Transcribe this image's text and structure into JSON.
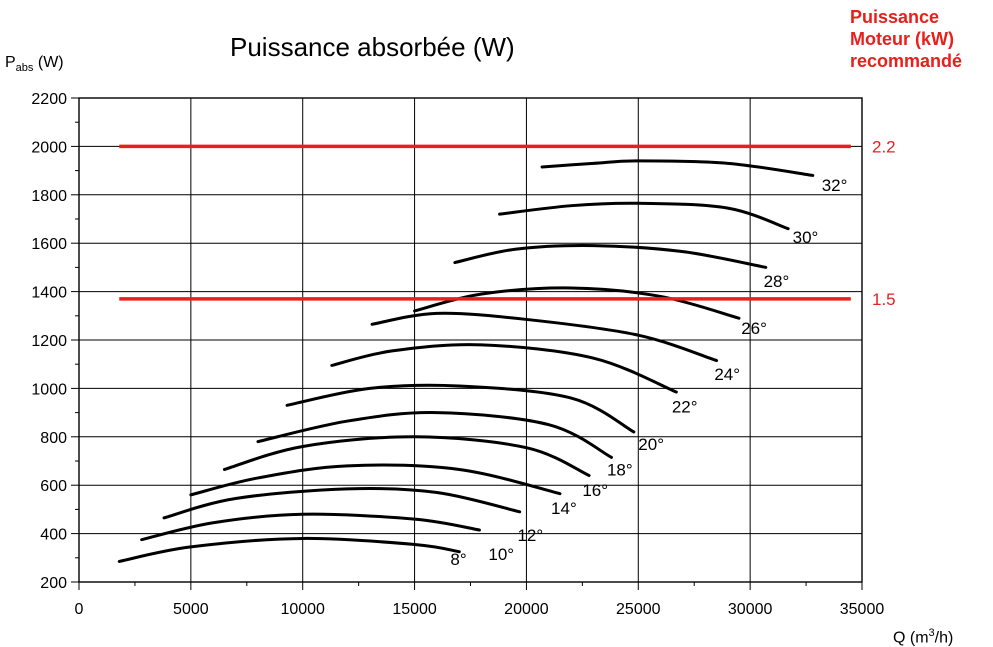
{
  "chart_data": {
    "type": "line",
    "title": "Puissance absorbée (W)",
    "motor_title_lines": [
      "Puissance",
      "Moteur (kW)",
      "recommandé"
    ],
    "ylabel_main": "P",
    "ylabel_sub": "abs",
    "ylabel_unit": " (W)",
    "xlabel_main": "Q (m",
    "xlabel_sup": "3",
    "xlabel_unit": "/h)",
    "xlim": [
      0,
      35000
    ],
    "ylim": [
      200,
      2200
    ],
    "x_ticks": [
      0,
      5000,
      10000,
      15000,
      20000,
      25000,
      30000,
      35000
    ],
    "y_ticks": [
      200,
      400,
      600,
      800,
      1000,
      1200,
      1400,
      1600,
      1800,
      2000,
      2200
    ],
    "grid": true,
    "colors": {
      "curves": "#000000",
      "motor_lines": "#e8201b",
      "grid": "#000000"
    },
    "motor_lines": [
      {
        "label": "2.2",
        "y": 2000,
        "x_start": 1800,
        "x_end": 34500
      },
      {
        "label": "1.5",
        "y": 1370,
        "x_start": 1800,
        "x_end": 34500
      }
    ],
    "series": [
      {
        "name": "8°",
        "x": [
          1800,
          5000,
          10000,
          15000,
          17000
        ],
        "y": [
          285,
          345,
          380,
          355,
          325
        ]
      },
      {
        "name": "10°",
        "x": [
          2800,
          6000,
          10000,
          15000,
          17900
        ],
        "y": [
          375,
          445,
          480,
          460,
          415
        ]
      },
      {
        "name": "12°",
        "x": [
          3800,
          7000,
          12000,
          16000,
          19700
        ],
        "y": [
          465,
          545,
          585,
          570,
          490
        ]
      },
      {
        "name": "14°",
        "x": [
          5000,
          8000,
          12000,
          17000,
          21500
        ],
        "y": [
          560,
          630,
          680,
          665,
          565
        ]
      },
      {
        "name": "16°",
        "x": [
          6500,
          10000,
          15000,
          20000,
          22800
        ],
        "y": [
          665,
          760,
          800,
          755,
          640
        ]
      },
      {
        "name": "18°",
        "x": [
          8000,
          12000,
          16000,
          21000,
          23800
        ],
        "y": [
          780,
          865,
          900,
          850,
          715
        ]
      },
      {
        "name": "20°",
        "x": [
          9300,
          13000,
          17000,
          22000,
          24800
        ],
        "y": [
          930,
          1000,
          1010,
          960,
          820
        ]
      },
      {
        "name": "22°",
        "x": [
          11300,
          14000,
          18000,
          23000,
          26700
        ],
        "y": [
          1095,
          1155,
          1180,
          1125,
          985
        ]
      },
      {
        "name": "24°",
        "x": [
          13100,
          16000,
          20000,
          25000,
          28500
        ],
        "y": [
          1265,
          1310,
          1285,
          1220,
          1115
        ]
      },
      {
        "name": "26°",
        "x": [
          15000,
          18000,
          22000,
          26000,
          29500
        ],
        "y": [
          1320,
          1390,
          1415,
          1380,
          1290
        ]
      },
      {
        "name": "28°",
        "x": [
          16800,
          19500,
          23000,
          27000,
          30700
        ],
        "y": [
          1520,
          1575,
          1590,
          1565,
          1500
        ]
      },
      {
        "name": "30°",
        "x": [
          18800,
          22000,
          25000,
          29000,
          31700
        ],
        "y": [
          1720,
          1755,
          1765,
          1745,
          1660
        ]
      },
      {
        "name": "32°",
        "x": [
          20700,
          23000,
          25000,
          29000,
          32800
        ],
        "y": [
          1915,
          1930,
          1940,
          1930,
          1880
        ]
      }
    ],
    "series_label_positions": [
      {
        "name": "8°",
        "x": 16600,
        "y": 270
      },
      {
        "name": "10°",
        "x": 18300,
        "y": 290
      },
      {
        "name": "12°",
        "x": 19600,
        "y": 370
      },
      {
        "name": "14°",
        "x": 21100,
        "y": 480
      },
      {
        "name": "16°",
        "x": 22500,
        "y": 555
      },
      {
        "name": "18°",
        "x": 23600,
        "y": 640
      },
      {
        "name": "20°",
        "x": 25000,
        "y": 745
      },
      {
        "name": "22°",
        "x": 26500,
        "y": 900
      },
      {
        "name": "24°",
        "x": 28400,
        "y": 1035
      },
      {
        "name": "26°",
        "x": 29600,
        "y": 1225
      },
      {
        "name": "28°",
        "x": 30600,
        "y": 1420
      },
      {
        "name": "30°",
        "x": 31900,
        "y": 1600
      },
      {
        "name": "32°",
        "x": 33200,
        "y": 1815
      }
    ]
  }
}
